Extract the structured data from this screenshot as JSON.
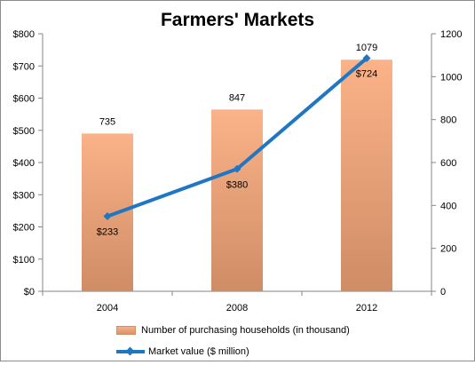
{
  "chart_data": {
    "type": "bar",
    "title": "Farmers' Markets",
    "categories": [
      "2004",
      "2008",
      "2012"
    ],
    "series": [
      {
        "name": "Number of purchasing households (in thousand)",
        "type": "bar",
        "axis": "right",
        "values": [
          735,
          847,
          1079
        ],
        "color": "#f4a97d"
      },
      {
        "name": "Market value ($ million)",
        "type": "line",
        "axis": "left",
        "values": [
          233,
          380,
          724
        ],
        "color": "#1f77c4"
      }
    ],
    "bar_labels": [
      "735",
      "847",
      "1079"
    ],
    "line_labels": [
      "$233",
      "$380",
      "$724"
    ],
    "y_left": {
      "ylim": [
        0,
        800
      ],
      "ticks": [
        0,
        100,
        200,
        300,
        400,
        500,
        600,
        700,
        800
      ],
      "tick_labels": [
        "$0",
        "$100",
        "$200",
        "$300",
        "$400",
        "$500",
        "$600",
        "$700",
        "$800"
      ]
    },
    "y_right": {
      "ylim": [
        0,
        1200
      ],
      "ticks": [
        0,
        200,
        400,
        600,
        800,
        1000,
        1200
      ],
      "tick_labels": [
        "0",
        "200",
        "400",
        "600",
        "800",
        "1000",
        "1200"
      ]
    },
    "grid": false,
    "legend_position": "bottom"
  }
}
